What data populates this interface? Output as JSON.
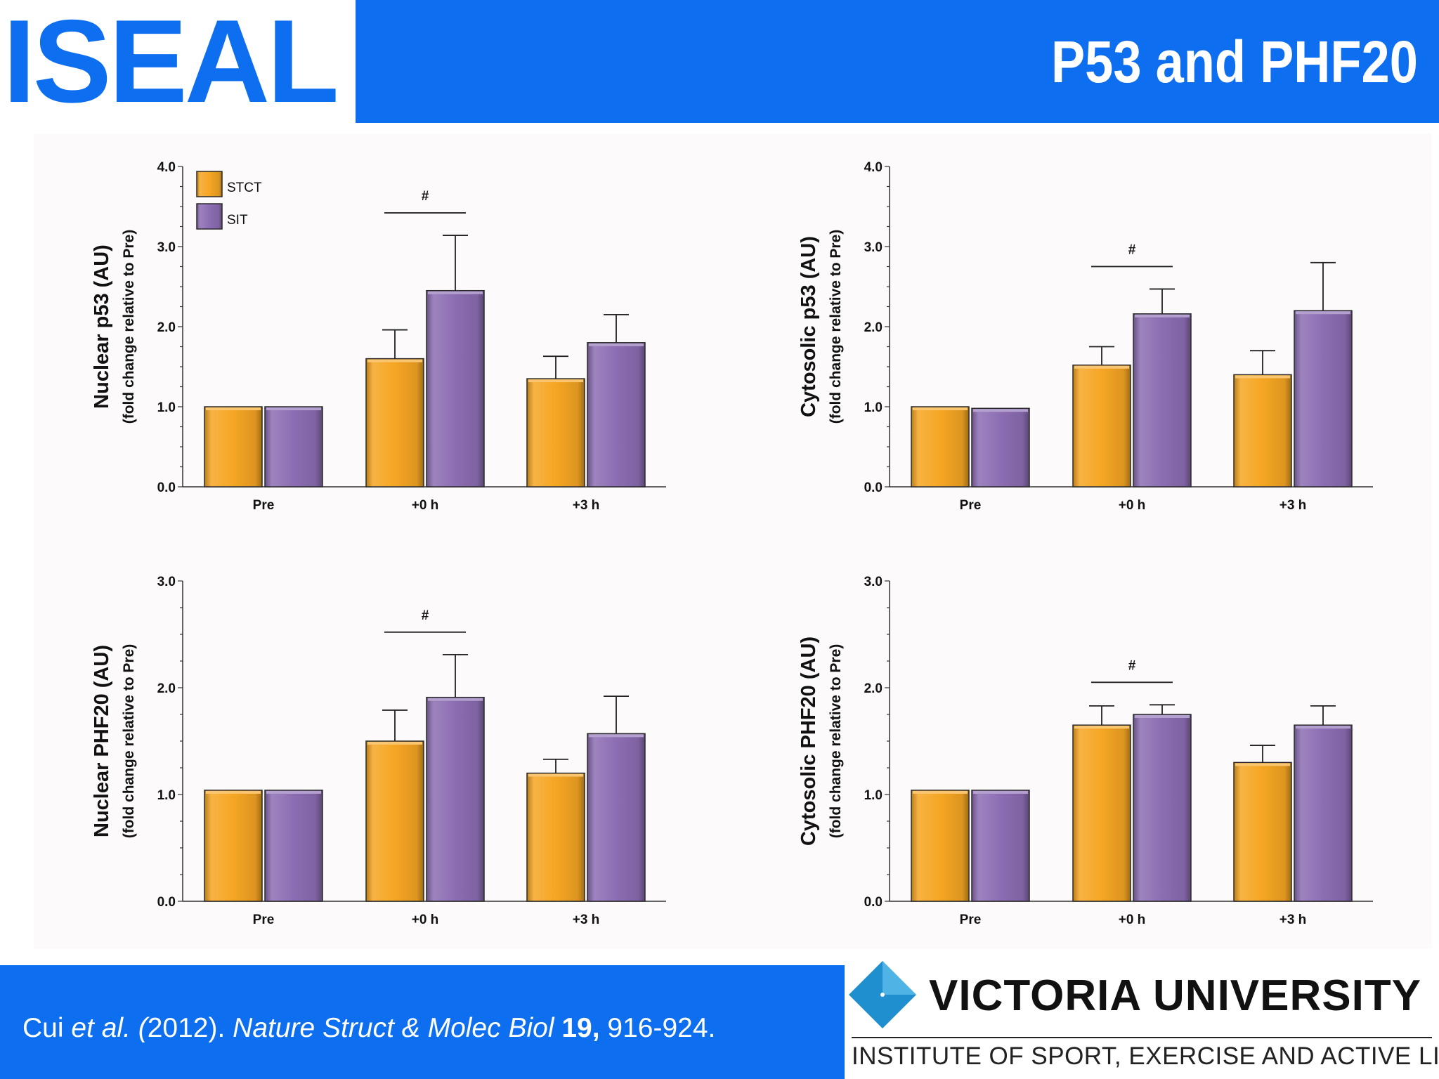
{
  "header": {
    "logo": "ISEAL",
    "title": "P53 and PHF20"
  },
  "legend": [
    {
      "label": "STCT",
      "color": "#f5a623"
    },
    {
      "label": "SIT",
      "color": "#8c6db3"
    }
  ],
  "colors": {
    "stct": "#f5a623",
    "sit": "#8c6db3",
    "brand": "#0d6ef0"
  },
  "chart_data": [
    {
      "type": "bar",
      "ylabel": "Nuclear p53 (AU)",
      "ylabel_sub": "(fold change relative to Pre)",
      "categories": [
        "Pre",
        "+0 h",
        "+3 h"
      ],
      "ylim": [
        0,
        4
      ],
      "yticks": [
        "0.0",
        "1.0",
        "2.0",
        "3.0",
        "4.0"
      ],
      "series": [
        {
          "name": "STCT",
          "values": [
            1.0,
            1.6,
            1.35
          ],
          "errors": [
            0,
            0.36,
            0.28
          ]
        },
        {
          "name": "SIT",
          "values": [
            1.0,
            2.45,
            1.8
          ],
          "errors": [
            0,
            0.69,
            0.35
          ]
        }
      ],
      "annotation": {
        "text": "#",
        "category": 1
      }
    },
    {
      "type": "bar",
      "ylabel": "Cytosolic p53 (AU)",
      "ylabel_sub": "(fold change relative to Pre)",
      "categories": [
        "Pre",
        "+0 h",
        "+3 h"
      ],
      "ylim": [
        0,
        4
      ],
      "yticks": [
        "0.0",
        "1.0",
        "2.0",
        "3.0",
        "4.0"
      ],
      "series": [
        {
          "name": "STCT",
          "values": [
            1.0,
            1.52,
            1.4
          ],
          "errors": [
            0,
            0.23,
            0.3
          ]
        },
        {
          "name": "SIT",
          "values": [
            0.98,
            2.16,
            2.2
          ],
          "errors": [
            0,
            0.31,
            0.6
          ]
        }
      ],
      "annotation": {
        "text": "#",
        "category": 1
      }
    },
    {
      "type": "bar",
      "ylabel": "Nuclear PHF20 (AU)",
      "ylabel_sub": "(fold change relative to Pre)",
      "categories": [
        "Pre",
        "+0 h",
        "+3 h"
      ],
      "ylim": [
        0,
        3
      ],
      "yticks": [
        "0.0",
        "1.0",
        "2.0",
        "3.0"
      ],
      "series": [
        {
          "name": "STCT",
          "values": [
            1.04,
            1.5,
            1.2
          ],
          "errors": [
            0,
            0.29,
            0.13
          ]
        },
        {
          "name": "SIT",
          "values": [
            1.04,
            1.91,
            1.57
          ],
          "errors": [
            0,
            0.4,
            0.35
          ]
        }
      ],
      "annotation": {
        "text": "#",
        "category": 1
      }
    },
    {
      "type": "bar",
      "ylabel": "Cytosolic PHF20 (AU)",
      "ylabel_sub": "(fold change relative to Pre)",
      "categories": [
        "Pre",
        "+0 h",
        "+3 h"
      ],
      "ylim": [
        0,
        3
      ],
      "yticks": [
        "0.0",
        "1.0",
        "2.0",
        "3.0"
      ],
      "series": [
        {
          "name": "STCT",
          "values": [
            1.04,
            1.65,
            1.3
          ],
          "errors": [
            0,
            0.18,
            0.16
          ]
        },
        {
          "name": "SIT",
          "values": [
            1.04,
            1.75,
            1.65
          ],
          "errors": [
            0,
            0.09,
            0.18
          ]
        }
      ],
      "annotation": {
        "text": "#",
        "category": 1
      }
    }
  ],
  "footer": {
    "citation_authors": "Cui ",
    "citation_etal": "et al. (",
    "citation_year": "2012). ",
    "citation_journal": "Nature Struct & Molec Biol",
    "citation_volume": " 19,",
    "citation_pages": " 916-924.",
    "university": "VICTORIA UNIVERSITY",
    "institute": "INSTITUTE OF SPORT, EXERCISE AND ACTIVE LIVING"
  }
}
